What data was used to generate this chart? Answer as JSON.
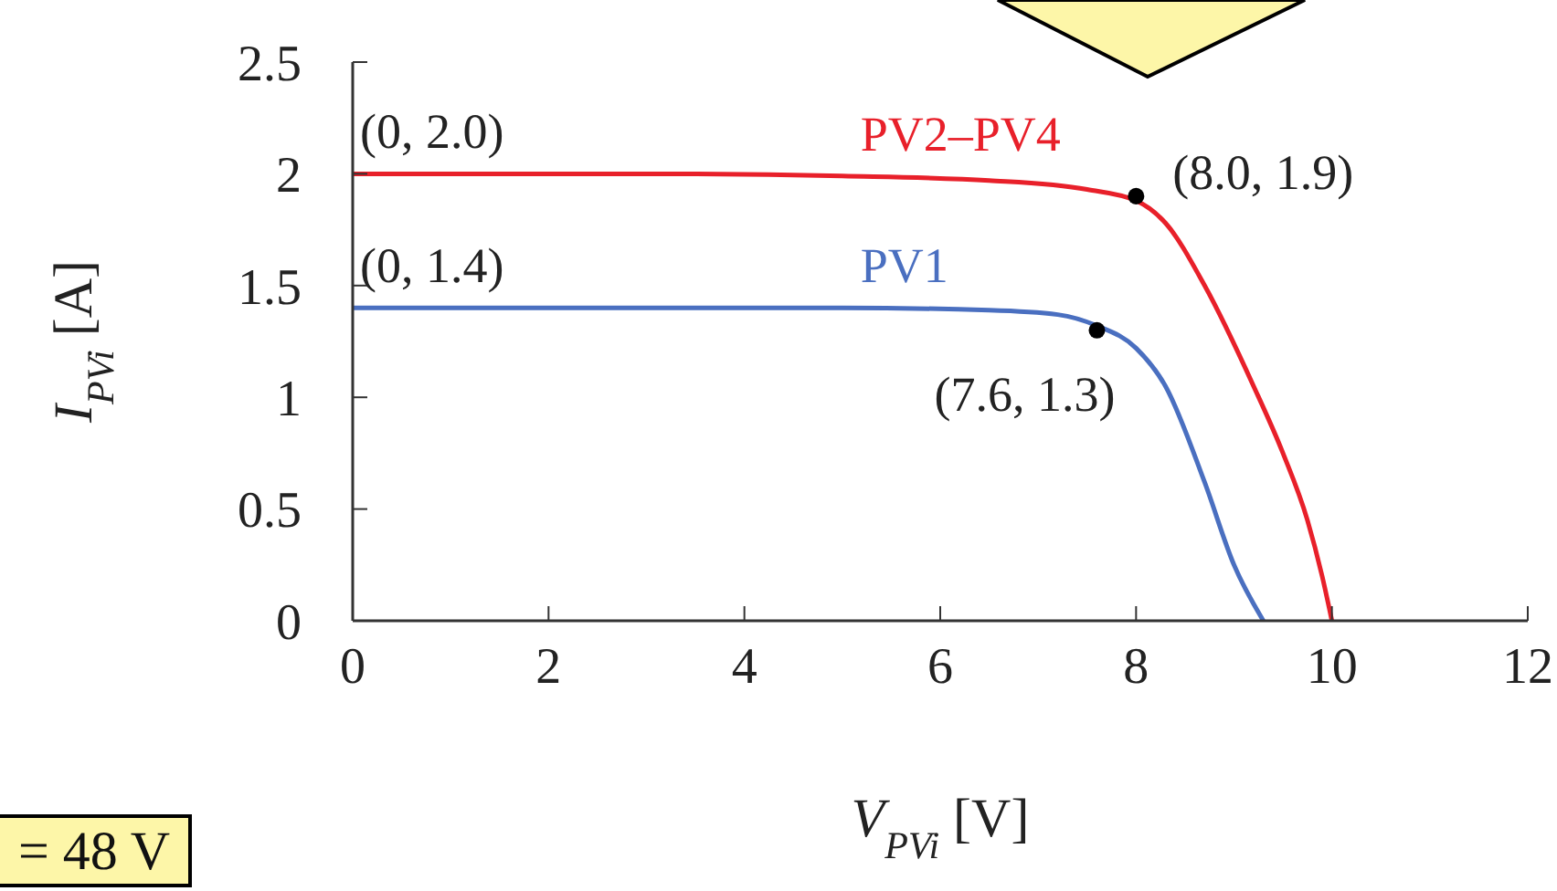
{
  "chart_data": {
    "type": "line",
    "xlabel": "V$_{PVi}$ [V]",
    "ylabel": "I$_{PVi}$ [A]",
    "xlim": [
      0,
      12
    ],
    "xticks": [
      0,
      2,
      4,
      6,
      8,
      10,
      12
    ],
    "ylim": [
      0,
      2.5
    ],
    "yticks": [
      0,
      0.5,
      1,
      1.5,
      2,
      2.5
    ],
    "grid": false,
    "legend": false,
    "marker": "none",
    "line_style": "solid",
    "series": [
      {
        "name": "PV2–PV4",
        "color": "#e8202a",
        "x": [
          0,
          3,
          5,
          6.5,
          7.5,
          8,
          8.3,
          8.7,
          9.2,
          9.5,
          9.75,
          9.9,
          10
        ],
        "values": [
          2.0,
          2.0,
          1.99,
          1.97,
          1.93,
          1.88,
          1.78,
          1.5,
          1.05,
          0.75,
          0.45,
          0.2,
          0
        ]
      },
      {
        "name": "PV1",
        "color": "#4a6fc0",
        "x": [
          0,
          3,
          5,
          6.5,
          7.2,
          7.6,
          8.0,
          8.3,
          8.7,
          9.0,
          9.3
        ],
        "values": [
          1.4,
          1.4,
          1.4,
          1.39,
          1.37,
          1.32,
          1.22,
          1.05,
          0.62,
          0.25,
          0
        ]
      },
      {
        "type": "scatter",
        "color": "#000000",
        "marker": "circle",
        "x": [
          8.0,
          7.6
        ],
        "values": [
          1.9,
          1.3
        ]
      }
    ],
    "annotations": [
      {
        "text": "(0, 2.0)",
        "x": 0,
        "y": 2.0
      },
      {
        "text": "(0, 1.4)",
        "x": 0,
        "y": 1.4
      },
      {
        "text": "(8.0, 1.9)",
        "x": 8.0,
        "y": 1.9
      },
      {
        "text": "(7.6, 1.3)",
        "x": 7.6,
        "y": 1.3
      },
      "= 48 V"
    ]
  }
}
